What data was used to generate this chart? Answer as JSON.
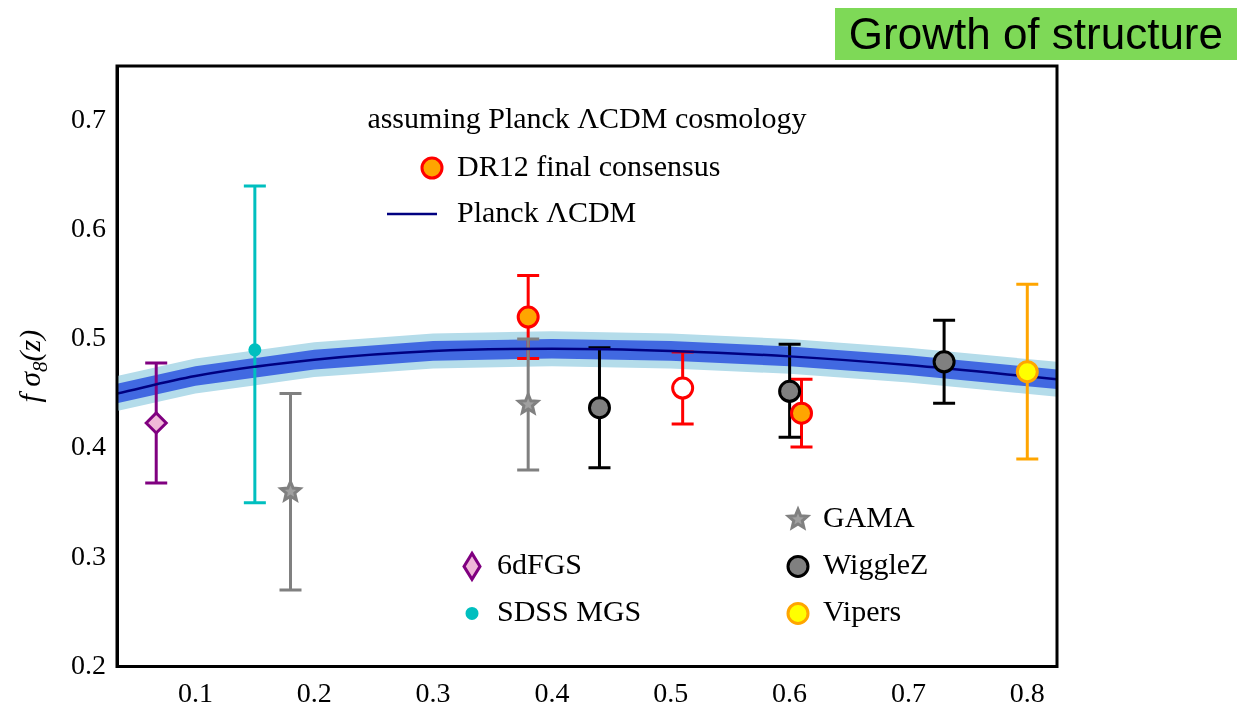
{
  "chart_data": {
    "type": "scatter",
    "title": "Growth of structure",
    "legend_title": "assuming Planck ΛCDM cosmology",
    "ylabel": "f σ$_{8}$(z)",
    "xlim": [
      0.034,
      0.825
    ],
    "ylim": [
      0.2,
      0.75
    ],
    "xticks": [
      0.1,
      0.2,
      0.3,
      0.4,
      0.5,
      0.6,
      0.7,
      0.8
    ],
    "yticks": [
      0.2,
      0.3,
      0.4,
      0.5,
      0.6,
      0.7
    ],
    "legend": "bottom right",
    "series": [
      {
        "name": "DR12 final consensus",
        "marker": "circle",
        "color": "#ff0000",
        "colors": [
          "#ffa500",
          "#ffffff",
          "#ffa500"
        ],
        "x": [
          0.38,
          0.51,
          0.61
        ],
        "values": [
          0.52,
          0.455,
          0.432
        ],
        "errors": [
          [
            0.482,
            0.558
          ],
          [
            0.422,
            0.488
          ],
          [
            0.401,
            0.463
          ]
        ]
      },
      {
        "name": "Planck ΛCDM",
        "type": "line",
        "color": "#000080",
        "x": [
          0.034,
          0.1,
          0.2,
          0.3,
          0.4,
          0.5,
          0.6,
          0.7,
          0.825
        ],
        "values": [
          0.45,
          0.466,
          0.481,
          0.489,
          0.491,
          0.489,
          0.484,
          0.476,
          0.463
        ]
      },
      {
        "name": "6dFGS",
        "marker": "diamond",
        "color": "#800080",
        "colors": [
          "#f0b8d8"
        ],
        "x": [
          0.067
        ],
        "values": [
          0.423
        ],
        "errors": [
          [
            0.368,
            0.478
          ]
        ]
      },
      {
        "name": "SDSS MGS",
        "marker": "circle",
        "color": "#00bfbf",
        "colors": [
          "#00bfbf"
        ],
        "x": [
          0.15
        ],
        "values": [
          0.49
        ],
        "errors": [
          [
            0.35,
            0.64
          ]
        ]
      },
      {
        "name": "GAMA",
        "marker": "star",
        "color": "#808080",
        "colors": [
          "#a0a0a0",
          "#a0a0a0"
        ],
        "x": [
          0.18,
          0.38
        ],
        "values": [
          0.36,
          0.44
        ],
        "errors": [
          [
            0.27,
            0.45
          ],
          [
            0.38,
            0.5
          ]
        ]
      },
      {
        "name": "WiggleZ",
        "marker": "circle",
        "color": "#000000",
        "colors": [
          "#808080",
          "#808080",
          "#808080"
        ],
        "x": [
          0.44,
          0.6,
          0.73
        ],
        "values": [
          0.437,
          0.452,
          0.479
        ],
        "errors": [
          [
            0.382,
            0.492
          ],
          [
            0.41,
            0.495
          ],
          [
            0.441,
            0.517
          ]
        ]
      },
      {
        "name": "Vipers",
        "marker": "circle",
        "color": "#ffa500",
        "colors": [
          "#ffff00"
        ],
        "x": [
          0.8
        ],
        "values": [
          0.47
        ],
        "errors": [
          [
            0.39,
            0.55
          ]
        ]
      },
      {
        "type": "line",
        "color": "#b4dcea",
        "x": [
          0.034,
          0.1,
          0.2,
          0.3,
          0.4,
          0.5,
          0.6,
          0.7,
          0.825
        ],
        "values": [
          null,
          null,
          null,
          null,
          null,
          null,
          null,
          null,
          null
        ],
        "lower": [
          0.434,
          0.45,
          0.465,
          0.473,
          0.475,
          0.473,
          0.468,
          0.46,
          0.447
        ],
        "upper": [
          0.466,
          0.482,
          0.497,
          0.505,
          0.507,
          0.505,
          0.5,
          0.492,
          0.479
        ]
      },
      {
        "type": "line",
        "color": "#4169e1",
        "x": [
          0.034,
          0.1,
          0.2,
          0.3,
          0.4,
          0.5,
          0.6,
          0.7,
          0.825
        ],
        "values": [
          null,
          null,
          null,
          null,
          null,
          null,
          null,
          null,
          null
        ],
        "lower": [
          0.441,
          0.457,
          0.472,
          0.48,
          0.482,
          0.48,
          0.475,
          0.467,
          0.454
        ],
        "upper": [
          0.459,
          0.475,
          0.49,
          0.498,
          0.5,
          0.498,
          0.493,
          0.485,
          0.472
        ]
      }
    ]
  }
}
